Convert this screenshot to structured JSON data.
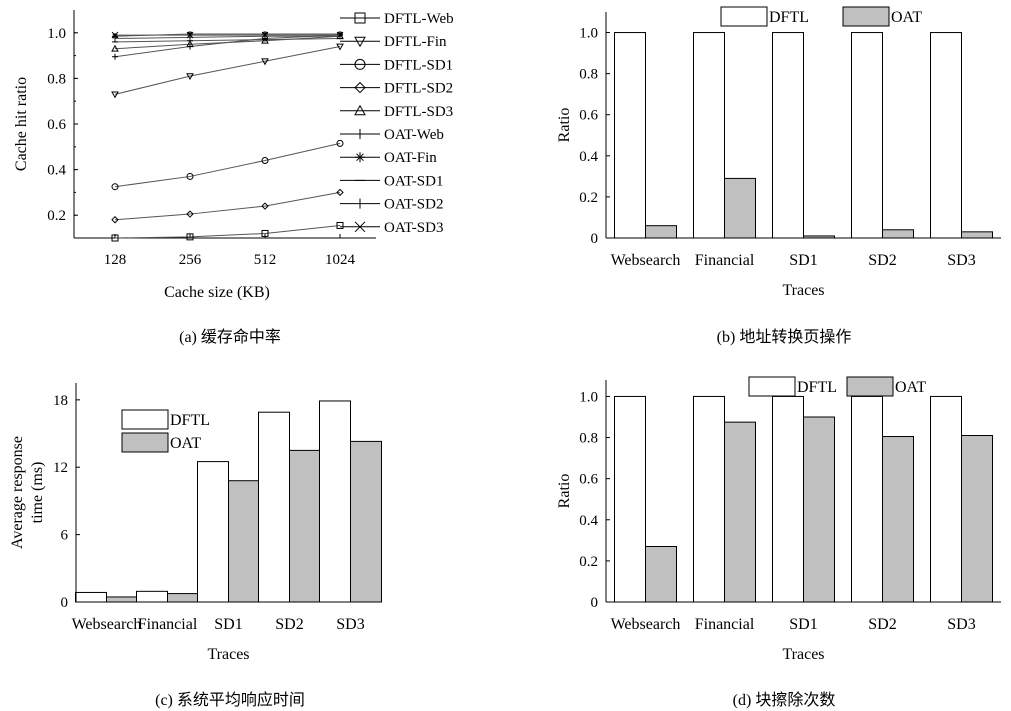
{
  "chart_data": [
    {
      "type": "line",
      "caption": "(a) 缓存命中率",
      "xlabel": "Cache size (KB)",
      "ylabel": "Cache hit ratio",
      "categories": [
        "128",
        "256",
        "512",
        "1024"
      ],
      "y_ticks": [
        "0.2",
        "0.4",
        "0.6",
        "0.8",
        "1.0"
      ],
      "ylim": [
        0.1,
        1.1
      ],
      "legend_position": "right",
      "series": [
        {
          "name": "DFTL-Web",
          "marker": "square",
          "values": [
            0.1,
            0.105,
            0.12,
            0.155
          ]
        },
        {
          "name": "DFTL-Fin",
          "marker": "triangle-down",
          "values": [
            0.73,
            0.81,
            0.875,
            0.94
          ]
        },
        {
          "name": "DFTL-SD1",
          "marker": "circle",
          "values": [
            0.325,
            0.37,
            0.44,
            0.515
          ]
        },
        {
          "name": "DFTL-SD2",
          "marker": "diamond",
          "values": [
            0.18,
            0.205,
            0.24,
            0.3
          ]
        },
        {
          "name": "DFTL-SD3",
          "marker": "triangle-up",
          "values": [
            0.93,
            0.95,
            0.965,
            0.985
          ]
        },
        {
          "name": "OAT-Web",
          "marker": "plus",
          "values": [
            0.895,
            0.94,
            0.975,
            0.99
          ]
        },
        {
          "name": "OAT-Fin",
          "marker": "star",
          "values": [
            0.985,
            0.995,
            0.995,
            0.995
          ]
        },
        {
          "name": "OAT-SD1",
          "marker": "hline",
          "values": [
            0.96,
            0.965,
            0.97,
            0.975
          ]
        },
        {
          "name": "OAT-SD2",
          "marker": "vline",
          "values": [
            0.975,
            0.98,
            0.985,
            0.985
          ]
        },
        {
          "name": "OAT-SD3",
          "marker": "x",
          "values": [
            0.99,
            0.99,
            0.99,
            0.99
          ]
        }
      ]
    },
    {
      "type": "bar",
      "caption": "(b) 地址转换页操作",
      "xlabel": "Traces",
      "ylabel": "Ratio",
      "categories": [
        "Websearch",
        "Financial",
        "SD1",
        "SD2",
        "SD3"
      ],
      "y_ticks": [
        "0",
        "0.2",
        "0.4",
        "0.6",
        "0.8",
        "1.0"
      ],
      "ylim": [
        0,
        1.1
      ],
      "legend_position": "top",
      "series": [
        {
          "name": "DFTL",
          "color": "#ffffff",
          "values": [
            1.0,
            1.0,
            1.0,
            1.0,
            1.0
          ]
        },
        {
          "name": "OAT",
          "color": "#c0c0c0",
          "values": [
            0.06,
            0.29,
            0.01,
            0.04,
            0.03
          ]
        }
      ]
    },
    {
      "type": "bar",
      "caption": "(c) 系统平均响应时间",
      "xlabel": "Traces",
      "ylabel": "Average response time (ms)",
      "ylabel_lines": [
        "Average response",
        "time (ms)"
      ],
      "categories": [
        "Websearch",
        "Financial",
        "SD1",
        "SD2",
        "SD3"
      ],
      "y_ticks": [
        "0",
        "6",
        "12",
        "18"
      ],
      "ylim": [
        0,
        19.5
      ],
      "legend_position": "top-left",
      "series": [
        {
          "name": "DFTL",
          "color": "#ffffff",
          "values": [
            0.85,
            0.95,
            12.5,
            16.9,
            17.9
          ]
        },
        {
          "name": "OAT",
          "color": "#c0c0c0",
          "values": [
            0.45,
            0.75,
            10.8,
            13.5,
            14.3
          ]
        }
      ]
    },
    {
      "type": "bar",
      "caption": "(d) 块擦除次数",
      "xlabel": "Traces",
      "ylabel": "Ratio",
      "categories": [
        "Websearch",
        "Financial",
        "SD1",
        "SD2",
        "SD3"
      ],
      "y_ticks": [
        "0",
        "0.2",
        "0.4",
        "0.6",
        "0.8",
        "1.0"
      ],
      "ylim": [
        0,
        1.08
      ],
      "legend_position": "top",
      "series": [
        {
          "name": "DFTL",
          "color": "#ffffff",
          "values": [
            1.0,
            1.0,
            1.0,
            1.0,
            1.0
          ]
        },
        {
          "name": "OAT",
          "color": "#c0c0c0",
          "values": [
            0.27,
            0.875,
            0.9,
            0.805,
            0.81
          ]
        }
      ]
    }
  ]
}
